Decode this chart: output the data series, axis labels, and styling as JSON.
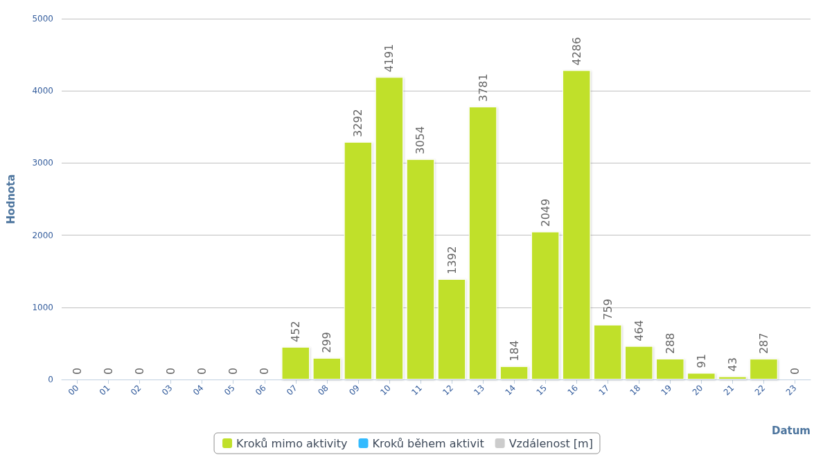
{
  "chart_data": {
    "type": "bar",
    "xlabel": "Datum",
    "ylabel": "Hodnota",
    "categories": [
      "00",
      "01",
      "02",
      "03",
      "04",
      "05",
      "06",
      "07",
      "08",
      "09",
      "10",
      "11",
      "12",
      "13",
      "14",
      "15",
      "16",
      "17",
      "18",
      "19",
      "20",
      "21",
      "22",
      "23"
    ],
    "series": [
      {
        "name": "Kroků mimo aktivity",
        "color": "#c0e02a",
        "values": [
          0,
          0,
          0,
          0,
          0,
          0,
          0,
          452,
          299,
          3292,
          4191,
          3054,
          1392,
          3781,
          184,
          2049,
          4286,
          759,
          464,
          288,
          91,
          43,
          287,
          0
        ]
      },
      {
        "name": "Kroků během aktivit",
        "color": "#33bbff",
        "values": [
          null,
          null,
          null,
          null,
          null,
          null,
          null,
          null,
          null,
          null,
          null,
          null,
          null,
          null,
          null,
          null,
          null,
          null,
          null,
          null,
          null,
          null,
          null,
          null
        ]
      },
      {
        "name": "Vzdálenost [m]",
        "color": "#cccccc",
        "values": [
          null,
          null,
          null,
          null,
          null,
          null,
          null,
          null,
          null,
          null,
          null,
          null,
          null,
          null,
          null,
          null,
          null,
          null,
          null,
          null,
          null,
          null,
          null,
          null
        ]
      }
    ],
    "ylim": [
      0,
      5000
    ],
    "yticks": [
      0,
      1000,
      2000,
      3000,
      4000,
      5000
    ],
    "grid": "y",
    "legend": "bottom",
    "data_labels": true
  }
}
